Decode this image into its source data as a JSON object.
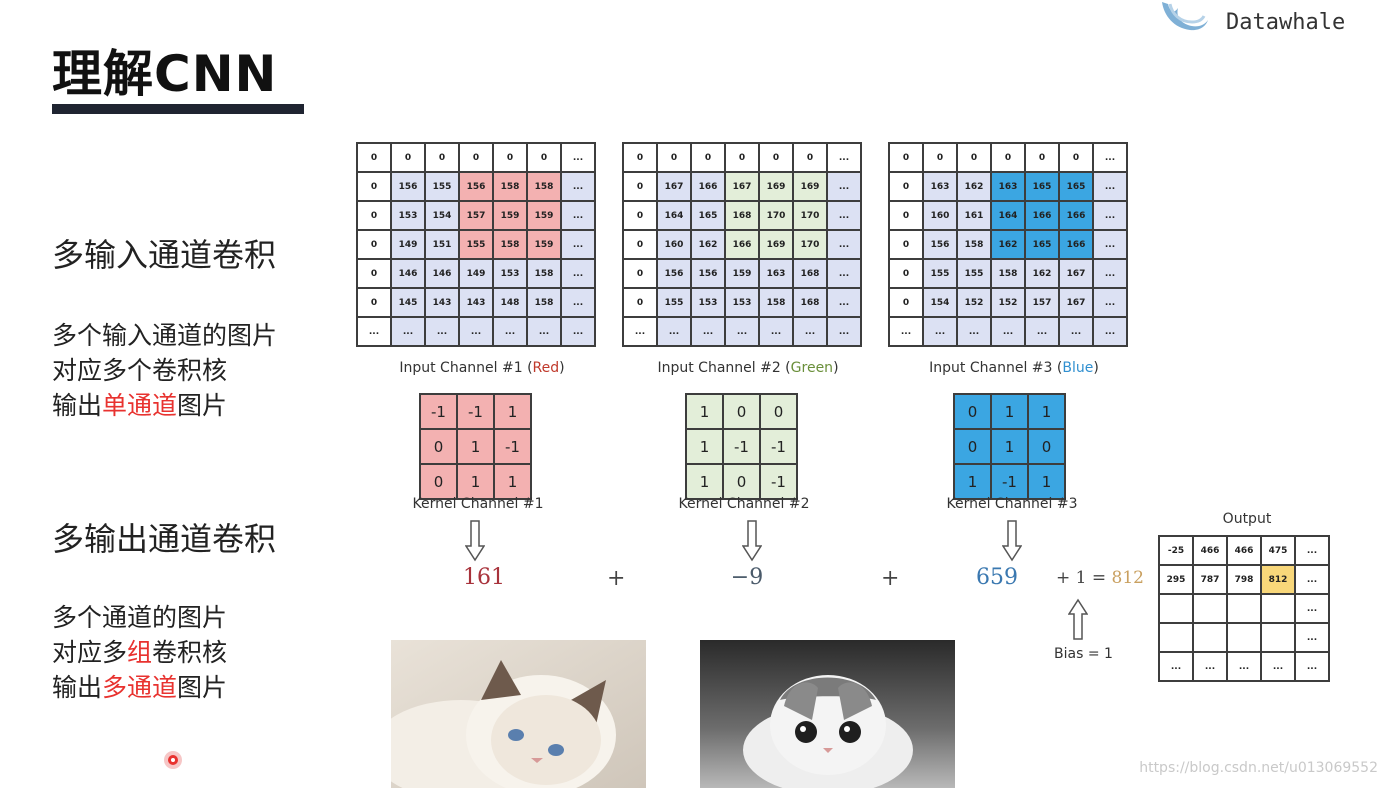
{
  "logo": {
    "text": "Datawhale",
    "icon": "datawhale-logo-icon"
  },
  "title": "理解CNN",
  "left": {
    "heading1": "多输入通道卷积",
    "desc1": [
      [
        {
          "t": "多个输入通道的图片",
          "red": false
        }
      ],
      [
        {
          "t": "对应多个卷积核",
          "red": false
        }
      ],
      [
        {
          "t": "输出",
          "red": false
        },
        {
          "t": "单通道",
          "red": true
        },
        {
          "t": "图片",
          "red": false
        }
      ]
    ],
    "heading2": "多输出通道卷积",
    "desc2": [
      [
        {
          "t": "多个通道的图片",
          "red": false
        }
      ],
      [
        {
          "t": "对应多",
          "red": false
        },
        {
          "t": "组",
          "red": true
        },
        {
          "t": "卷积核",
          "red": false
        }
      ],
      [
        {
          "t": "输出",
          "red": false
        },
        {
          "t": "多通道",
          "red": true
        },
        {
          "t": "图片",
          "red": false
        }
      ]
    ]
  },
  "channels": [
    {
      "caption_prefix": "Input Channel #1 (",
      "caption_color_word": "Red",
      "caption_suffix": ")",
      "caption_color": "#c0392b",
      "highlight": "#f3b1b1",
      "rows": [
        [
          "0",
          "0",
          "0",
          "0",
          "0",
          "0",
          "..."
        ],
        [
          "0",
          "156",
          "155",
          "156",
          "158",
          "158",
          "..."
        ],
        [
          "0",
          "153",
          "154",
          "157",
          "159",
          "159",
          "..."
        ],
        [
          "0",
          "149",
          "151",
          "155",
          "158",
          "159",
          "..."
        ],
        [
          "0",
          "146",
          "146",
          "149",
          "153",
          "158",
          "..."
        ],
        [
          "0",
          "145",
          "143",
          "143",
          "148",
          "158",
          "..."
        ],
        [
          "...",
          "...",
          "...",
          "...",
          "...",
          "...",
          "..."
        ]
      ],
      "kernel_caption": "Kernel Channel #1",
      "kernel": [
        [
          "-1",
          "-1",
          "1"
        ],
        [
          "0",
          "1",
          "-1"
        ],
        [
          "0",
          "1",
          "1"
        ]
      ],
      "result": "161",
      "result_color": "#a8323b"
    },
    {
      "caption_prefix": "Input Channel #2 (",
      "caption_color_word": "Green",
      "caption_suffix": ")",
      "caption_color": "#6a8f3a",
      "highlight": "#e3eed9",
      "rows": [
        [
          "0",
          "0",
          "0",
          "0",
          "0",
          "0",
          "..."
        ],
        [
          "0",
          "167",
          "166",
          "167",
          "169",
          "169",
          "..."
        ],
        [
          "0",
          "164",
          "165",
          "168",
          "170",
          "170",
          "..."
        ],
        [
          "0",
          "160",
          "162",
          "166",
          "169",
          "170",
          "..."
        ],
        [
          "0",
          "156",
          "156",
          "159",
          "163",
          "168",
          "..."
        ],
        [
          "0",
          "155",
          "153",
          "153",
          "158",
          "168",
          "..."
        ],
        [
          "...",
          "...",
          "...",
          "...",
          "...",
          "...",
          "..."
        ]
      ],
      "kernel_caption": "Kernel Channel #2",
      "kernel": [
        [
          "1",
          "0",
          "0"
        ],
        [
          "1",
          "-1",
          "-1"
        ],
        [
          "1",
          "0",
          "-1"
        ]
      ],
      "result": "−9",
      "result_color": "#4a5a6a"
    },
    {
      "caption_prefix": "Input Channel #3 (",
      "caption_color_word": "Blue",
      "caption_suffix": ")",
      "caption_color": "#2f8fd0",
      "highlight": "#3ba6e2",
      "rows": [
        [
          "0",
          "0",
          "0",
          "0",
          "0",
          "0",
          "..."
        ],
        [
          "0",
          "163",
          "162",
          "163",
          "165",
          "165",
          "..."
        ],
        [
          "0",
          "160",
          "161",
          "164",
          "166",
          "166",
          "..."
        ],
        [
          "0",
          "156",
          "158",
          "162",
          "165",
          "166",
          "..."
        ],
        [
          "0",
          "155",
          "155",
          "158",
          "162",
          "167",
          "..."
        ],
        [
          "0",
          "154",
          "152",
          "152",
          "157",
          "167",
          "..."
        ],
        [
          "...",
          "...",
          "...",
          "...",
          "...",
          "...",
          "..."
        ]
      ],
      "kernel_caption": "Kernel Channel #3",
      "kernel": [
        [
          "0",
          "1",
          "1"
        ],
        [
          "0",
          "1",
          "0"
        ],
        [
          "1",
          "-1",
          "1"
        ]
      ],
      "result": "659",
      "result_color": "#3a78b0"
    }
  ],
  "plus": "+",
  "bias_expr_prefix": "+ 1 = ",
  "bias_expr_result": "812",
  "bias_expr_result_color": "#c9a060",
  "bias_label": "Bias = 1",
  "output": {
    "title": "Output",
    "rows": [
      [
        "-25",
        "466",
        "466",
        "475",
        "..."
      ],
      [
        "295",
        "787",
        "798",
        "812",
        "..."
      ],
      [
        "",
        "",
        "",
        "",
        "..."
      ],
      [
        "",
        "",
        "",
        "",
        "..."
      ],
      [
        "...",
        "...",
        "...",
        "...",
        "..."
      ]
    ]
  },
  "watermark": "https://blog.csdn.net/u013069552",
  "colors": {
    "accent": "#e8322f",
    "title_bar": "#1f2431",
    "light_cell": "#dce1f3",
    "output_highlight": "#f8d77a"
  }
}
